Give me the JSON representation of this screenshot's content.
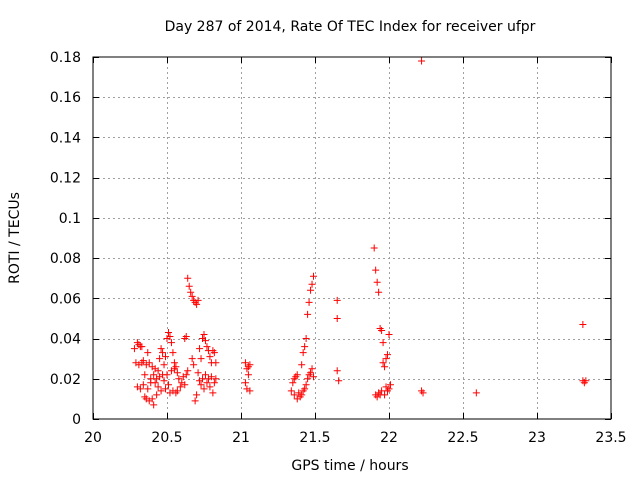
{
  "chart_data": {
    "type": "scatter",
    "title": "Day 287 of 2014, Rate Of TEC Index for receiver ufpr",
    "xlabel": "GPS time / hours",
    "ylabel": "ROTI / TECUs",
    "xlim": [
      20,
      23.5
    ],
    "ylim": [
      0,
      0.18
    ],
    "x_ticks": [
      20,
      20.5,
      21,
      21.5,
      22,
      22.5,
      23,
      23.5
    ],
    "x_tick_labels": [
      "20",
      "20.5",
      "21",
      "21.5",
      "22",
      "22.5",
      "23",
      "23.5"
    ],
    "y_ticks": [
      0,
      0.02,
      0.04,
      0.06,
      0.08,
      0.1,
      0.12,
      0.14,
      0.16,
      0.18
    ],
    "y_tick_labels": [
      "0",
      "0.02",
      "0.04",
      "0.06",
      "0.08",
      "0.1",
      "0.12",
      "0.14",
      "0.16",
      "0.18"
    ],
    "grid": true,
    "marker": "+",
    "color": "#ff0000",
    "series": [
      {
        "name": "ROTI",
        "points": [
          [
            20.28,
            0.035
          ],
          [
            20.29,
            0.028
          ],
          [
            20.3,
            0.038
          ],
          [
            20.3,
            0.016
          ],
          [
            20.31,
            0.037
          ],
          [
            20.31,
            0.027
          ],
          [
            20.32,
            0.036
          ],
          [
            20.32,
            0.015
          ],
          [
            20.33,
            0.036
          ],
          [
            20.33,
            0.028
          ],
          [
            20.34,
            0.029
          ],
          [
            20.34,
            0.017
          ],
          [
            20.35,
            0.022
          ],
          [
            20.35,
            0.011
          ],
          [
            20.36,
            0.027
          ],
          [
            20.36,
            0.01
          ],
          [
            20.37,
            0.033
          ],
          [
            20.37,
            0.015
          ],
          [
            20.38,
            0.028
          ],
          [
            20.38,
            0.009
          ],
          [
            20.39,
            0.02
          ],
          [
            20.39,
            0.018
          ],
          [
            20.4,
            0.026
          ],
          [
            20.4,
            0.01
          ],
          [
            20.41,
            0.022
          ],
          [
            20.41,
            0.007
          ],
          [
            20.42,
            0.025
          ],
          [
            20.42,
            0.018
          ],
          [
            20.43,
            0.02
          ],
          [
            20.43,
            0.012
          ],
          [
            20.44,
            0.024
          ],
          [
            20.44,
            0.016
          ],
          [
            20.45,
            0.03
          ],
          [
            20.45,
            0.021
          ],
          [
            20.46,
            0.035
          ],
          [
            20.46,
            0.014
          ],
          [
            20.47,
            0.033
          ],
          [
            20.47,
            0.022
          ],
          [
            20.48,
            0.027
          ],
          [
            20.48,
            0.019
          ],
          [
            20.49,
            0.031
          ],
          [
            20.49,
            0.015
          ],
          [
            20.5,
            0.04
          ],
          [
            20.5,
            0.022
          ],
          [
            20.51,
            0.043
          ],
          [
            20.51,
            0.017
          ],
          [
            20.52,
            0.041
          ],
          [
            20.52,
            0.013
          ],
          [
            20.53,
            0.038
          ],
          [
            20.53,
            0.024
          ],
          [
            20.54,
            0.033
          ],
          [
            20.54,
            0.014
          ],
          [
            20.55,
            0.028
          ],
          [
            20.55,
            0.025
          ],
          [
            20.56,
            0.026
          ],
          [
            20.56,
            0.013
          ],
          [
            20.57,
            0.023
          ],
          [
            20.57,
            0.014
          ],
          [
            20.58,
            0.02
          ],
          [
            20.59,
            0.016
          ],
          [
            20.6,
            0.018
          ],
          [
            20.61,
            0.021
          ],
          [
            20.62,
            0.017
          ],
          [
            20.62,
            0.04
          ],
          [
            20.63,
            0.041
          ],
          [
            20.63,
            0.022
          ],
          [
            20.64,
            0.07
          ],
          [
            20.64,
            0.024
          ],
          [
            20.65,
            0.066
          ],
          [
            20.66,
            0.063
          ],
          [
            20.67,
            0.061
          ],
          [
            20.67,
            0.03
          ],
          [
            20.68,
            0.059
          ],
          [
            20.68,
            0.027
          ],
          [
            20.69,
            0.058
          ],
          [
            20.69,
            0.009
          ],
          [
            20.7,
            0.057
          ],
          [
            20.7,
            0.012
          ],
          [
            20.71,
            0.059
          ],
          [
            20.71,
            0.023
          ],
          [
            20.72,
            0.035
          ],
          [
            20.72,
            0.019
          ],
          [
            20.73,
            0.03
          ],
          [
            20.73,
            0.017
          ],
          [
            20.74,
            0.04
          ],
          [
            20.74,
            0.02
          ],
          [
            20.75,
            0.042
          ],
          [
            20.75,
            0.015
          ],
          [
            20.76,
            0.039
          ],
          [
            20.76,
            0.022
          ],
          [
            20.77,
            0.036
          ],
          [
            20.77,
            0.018
          ],
          [
            20.78,
            0.034
          ],
          [
            20.78,
            0.02
          ],
          [
            20.79,
            0.031
          ],
          [
            20.79,
            0.016
          ],
          [
            20.8,
            0.028
          ],
          [
            20.8,
            0.021
          ],
          [
            20.81,
            0.034
          ],
          [
            20.81,
            0.013
          ],
          [
            20.82,
            0.033
          ],
          [
            20.82,
            0.018
          ],
          [
            20.83,
            0.028
          ],
          [
            20.83,
            0.02
          ],
          [
            21.03,
            0.028
          ],
          [
            21.03,
            0.018
          ],
          [
            21.04,
            0.025
          ],
          [
            21.04,
            0.015
          ],
          [
            21.05,
            0.022
          ],
          [
            21.05,
            0.026
          ],
          [
            21.06,
            0.014
          ],
          [
            21.06,
            0.027
          ],
          [
            21.34,
            0.014
          ],
          [
            21.35,
            0.018
          ],
          [
            21.36,
            0.02
          ],
          [
            21.36,
            0.012
          ],
          [
            21.37,
            0.021
          ],
          [
            21.38,
            0.022
          ],
          [
            21.38,
            0.01
          ],
          [
            21.39,
            0.013
          ],
          [
            21.4,
            0.011
          ],
          [
            21.41,
            0.027
          ],
          [
            21.41,
            0.012
          ],
          [
            21.42,
            0.033
          ],
          [
            21.42,
            0.014
          ],
          [
            21.43,
            0.036
          ],
          [
            21.43,
            0.015
          ],
          [
            21.44,
            0.04
          ],
          [
            21.44,
            0.017
          ],
          [
            21.45,
            0.052
          ],
          [
            21.45,
            0.02
          ],
          [
            21.46,
            0.058
          ],
          [
            21.46,
            0.022
          ],
          [
            21.47,
            0.064
          ],
          [
            21.47,
            0.023
          ],
          [
            21.48,
            0.067
          ],
          [
            21.48,
            0.025
          ],
          [
            21.49,
            0.071
          ],
          [
            21.49,
            0.021
          ],
          [
            21.65,
            0.059
          ],
          [
            21.65,
            0.05
          ],
          [
            21.65,
            0.024
          ],
          [
            21.66,
            0.019
          ],
          [
            21.9,
            0.085
          ],
          [
            21.91,
            0.074
          ],
          [
            21.91,
            0.012
          ],
          [
            21.92,
            0.068
          ],
          [
            21.92,
            0.011
          ],
          [
            21.93,
            0.063
          ],
          [
            21.93,
            0.013
          ],
          [
            21.94,
            0.045
          ],
          [
            21.94,
            0.012
          ],
          [
            21.95,
            0.044
          ],
          [
            21.95,
            0.014
          ],
          [
            21.96,
            0.038
          ],
          [
            21.96,
            0.028
          ],
          [
            21.97,
            0.026
          ],
          [
            21.97,
            0.012
          ],
          [
            21.98,
            0.03
          ],
          [
            21.98,
            0.016
          ],
          [
            21.99,
            0.032
          ],
          [
            21.99,
            0.014
          ],
          [
            22.0,
            0.042
          ],
          [
            22.0,
            0.015
          ],
          [
            22.01,
            0.017
          ],
          [
            22.22,
            0.178
          ],
          [
            22.22,
            0.014
          ],
          [
            22.23,
            0.013
          ],
          [
            22.59,
            0.013
          ],
          [
            23.31,
            0.047
          ],
          [
            23.31,
            0.019
          ],
          [
            23.32,
            0.018
          ],
          [
            23.33,
            0.019
          ]
        ]
      }
    ]
  }
}
